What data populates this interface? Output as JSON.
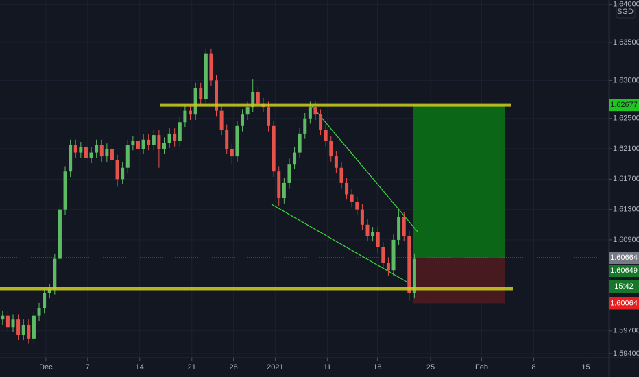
{
  "chart_data": {
    "type": "candlestick",
    "currency": "SGD",
    "up_color": "#5dbb63",
    "down_color": "#e5534b",
    "x": [
      0.25,
      0.75,
      1.25,
      1.75,
      2.25,
      2.75,
      3.25,
      3.75,
      4.25,
      4.75,
      5.25,
      5.75,
      6.25,
      6.75,
      7.25,
      7.75,
      8.25,
      8.75,
      9.25,
      9.75,
      10.25,
      10.75,
      11.25,
      11.75,
      12.25,
      12.75,
      13.25,
      13.75,
      14.25,
      14.75,
      15.25,
      15.75,
      16.25,
      16.75,
      17.25,
      17.75,
      18.25,
      18.75,
      19.25,
      19.75,
      20.25,
      20.75,
      21.25,
      21.75,
      22.25,
      22.75,
      23.25,
      23.75,
      24.25,
      24.75,
      25.25,
      25.75,
      26.25,
      26.75,
      27.25,
      27.75,
      28.25,
      28.75,
      29.25,
      29.75,
      30.25,
      30.75,
      31.25,
      31.75,
      32.25,
      32.75,
      33.25,
      33.75,
      34.25,
      34.75,
      35.25,
      35.75,
      36.25,
      36.75,
      37.25,
      37.75,
      38.25,
      38.75,
      39.25,
      39.75
    ],
    "candles": [
      [
        1.5985,
        1.5997,
        1.5978,
        1.599
      ],
      [
        1.599,
        1.5997,
        1.5968,
        1.5975
      ],
      [
        1.5975,
        1.5992,
        1.5968,
        1.5985
      ],
      [
        1.5985,
        1.5992,
        1.5958,
        1.5965
      ],
      [
        1.5965,
        1.5985,
        1.5958,
        1.5978
      ],
      [
        1.5978,
        1.5985,
        1.5953,
        1.596
      ],
      [
        1.596,
        1.5997,
        1.5953,
        1.599
      ],
      [
        1.599,
        1.6007,
        1.5983,
        1.6
      ],
      [
        1.6,
        1.6027,
        1.5993,
        1.602
      ],
      [
        1.602,
        1.6032,
        1.6013,
        1.6025
      ],
      [
        1.6025,
        1.6072,
        1.6018,
        1.6065
      ],
      [
        1.6065,
        1.6137,
        1.6058,
        1.613
      ],
      [
        1.613,
        1.6187,
        1.6123,
        1.618
      ],
      [
        1.618,
        1.6222,
        1.6173,
        1.6215
      ],
      [
        1.6215,
        1.6222,
        1.6198,
        1.6205
      ],
      [
        1.6205,
        1.6219,
        1.6198,
        1.6212
      ],
      [
        1.6212,
        1.6219,
        1.6191,
        1.6198
      ],
      [
        1.6198,
        1.6212,
        1.6191,
        1.6205
      ],
      [
        1.6205,
        1.6222,
        1.6198,
        1.6215
      ],
      [
        1.6215,
        1.6222,
        1.6193,
        1.62
      ],
      [
        1.62,
        1.6217,
        1.6193,
        1.621
      ],
      [
        1.621,
        1.6217,
        1.6188,
        1.6195
      ],
      [
        1.6195,
        1.6202,
        1.616,
        1.617
      ],
      [
        1.617,
        1.6192,
        1.6163,
        1.6185
      ],
      [
        1.6185,
        1.6222,
        1.6178,
        1.6215
      ],
      [
        1.6215,
        1.6227,
        1.6208,
        1.622
      ],
      [
        1.622,
        1.6227,
        1.6203,
        1.621
      ],
      [
        1.621,
        1.6229,
        1.6203,
        1.6222
      ],
      [
        1.6222,
        1.6229,
        1.6208,
        1.6215
      ],
      [
        1.6215,
        1.6235,
        1.6208,
        1.6228
      ],
      [
        1.6228,
        1.6235,
        1.6185,
        1.621
      ],
      [
        1.621,
        1.6225,
        1.6203,
        1.6218
      ],
      [
        1.6218,
        1.6237,
        1.6211,
        1.623
      ],
      [
        1.623,
        1.6237,
        1.6213,
        1.622
      ],
      [
        1.622,
        1.6252,
        1.6213,
        1.6245
      ],
      [
        1.6245,
        1.6267,
        1.6238,
        1.626
      ],
      [
        1.626,
        1.6267,
        1.6248,
        1.6255
      ],
      [
        1.6255,
        1.6297,
        1.6248,
        1.629
      ],
      [
        1.629,
        1.6297,
        1.6268,
        1.6275
      ],
      [
        1.6275,
        1.6342,
        1.6268,
        1.6335
      ],
      [
        1.6335,
        1.6342,
        1.6293,
        1.63
      ],
      [
        1.63,
        1.6307,
        1.6253,
        1.626
      ],
      [
        1.626,
        1.6267,
        1.6228,
        1.6235
      ],
      [
        1.6235,
        1.6242,
        1.6203,
        1.621
      ],
      [
        1.621,
        1.6217,
        1.619,
        1.62
      ],
      [
        1.62,
        1.6247,
        1.6193,
        1.624
      ],
      [
        1.624,
        1.6262,
        1.6233,
        1.6255
      ],
      [
        1.6255,
        1.6272,
        1.6248,
        1.6265
      ],
      [
        1.6265,
        1.6302,
        1.6258,
        1.6285
      ],
      [
        1.6285,
        1.6292,
        1.6263,
        1.627
      ],
      [
        1.627,
        1.6277,
        1.6258,
        1.6265
      ],
      [
        1.6265,
        1.6272,
        1.6233,
        1.624
      ],
      [
        1.624,
        1.6247,
        1.6173,
        1.618
      ],
      [
        1.618,
        1.6187,
        1.6135,
        1.6145
      ],
      [
        1.6145,
        1.6172,
        1.6138,
        1.6165
      ],
      [
        1.6165,
        1.6197,
        1.6158,
        1.619
      ],
      [
        1.619,
        1.6212,
        1.6183,
        1.6205
      ],
      [
        1.6205,
        1.6237,
        1.6198,
        1.623
      ],
      [
        1.623,
        1.6257,
        1.6223,
        1.625
      ],
      [
        1.625,
        1.6272,
        1.6243,
        1.6265
      ],
      [
        1.6265,
        1.6272,
        1.6248,
        1.6255
      ],
      [
        1.6255,
        1.6262,
        1.6228,
        1.6235
      ],
      [
        1.6235,
        1.6242,
        1.6213,
        1.622
      ],
      [
        1.622,
        1.6227,
        1.6193,
        1.62
      ],
      [
        1.62,
        1.6207,
        1.6178,
        1.6185
      ],
      [
        1.6185,
        1.6192,
        1.6158,
        1.6165
      ],
      [
        1.6165,
        1.6172,
        1.6143,
        1.615
      ],
      [
        1.615,
        1.6157,
        1.6133,
        1.614
      ],
      [
        1.614,
        1.6147,
        1.6123,
        1.613
      ],
      [
        1.613,
        1.6137,
        1.6103,
        1.611
      ],
      [
        1.611,
        1.6117,
        1.6088,
        1.6095
      ],
      [
        1.6095,
        1.6107,
        1.6088,
        1.61
      ],
      [
        1.61,
        1.6107,
        1.6073,
        1.608
      ],
      [
        1.608,
        1.6087,
        1.6053,
        1.606
      ],
      [
        1.606,
        1.6067,
        1.6043,
        1.605
      ],
      [
        1.605,
        1.6097,
        1.6043,
        1.609
      ],
      [
        1.609,
        1.613,
        1.6083,
        1.612
      ],
      [
        1.612,
        1.6127,
        1.6088,
        1.6095
      ],
      [
        1.6095,
        1.6102,
        1.601,
        1.602
      ],
      [
        1.602,
        1.6072,
        1.6013,
        1.6065
      ]
    ],
    "xlim": [
      0,
      58.4
    ],
    "xticks": [
      {
        "value": 4.4,
        "label": "Dec"
      },
      {
        "value": 8.4,
        "label": "7"
      },
      {
        "value": 13.4,
        "label": "14"
      },
      {
        "value": 18.4,
        "label": "21"
      },
      {
        "value": 22.4,
        "label": "28"
      },
      {
        "value": 26.4,
        "label": "2021"
      },
      {
        "value": 31.4,
        "label": "11"
      },
      {
        "value": 36.2,
        "label": "18"
      },
      {
        "value": 41.3,
        "label": "25"
      },
      {
        "value": 46.2,
        "label": "Feb"
      },
      {
        "value": 51.2,
        "label": "8"
      },
      {
        "value": 56.2,
        "label": "15"
      }
    ],
    "ylim": [
      1.59346,
      1.6406
    ],
    "yticks": [
      {
        "value": 1.64,
        "label": "1.64000"
      },
      {
        "value": 1.635,
        "label": "1.63500"
      },
      {
        "value": 1.63,
        "label": "1.63000"
      },
      {
        "value": 1.625,
        "label": "1.62500"
      },
      {
        "value": 1.621,
        "label": "1.62100"
      },
      {
        "value": 1.617,
        "label": "1.61700"
      },
      {
        "value": 1.613,
        "label": "1.61300"
      },
      {
        "value": 1.609,
        "label": "1.60900"
      },
      {
        "value": 1.597,
        "label": "1.59700"
      },
      {
        "value": 1.594,
        "label": "1.59400"
      }
    ],
    "price_labels": [
      {
        "value": 1.62677,
        "label": "1.62677",
        "color": "#22c422",
        "text_color": "#131722"
      },
      {
        "value": 1.60664,
        "label": "1.60664",
        "color": "#787b86",
        "text_color": "#ffffff"
      },
      {
        "value": 1.60649,
        "label": "1.60649",
        "color": "#17772b",
        "text_color": "#ffffff"
      },
      {
        "value": 1.60064,
        "label": "1.60064",
        "color": "#e91e1e",
        "text_color": "#ffffff"
      }
    ],
    "countdown": "15:42"
  }
}
